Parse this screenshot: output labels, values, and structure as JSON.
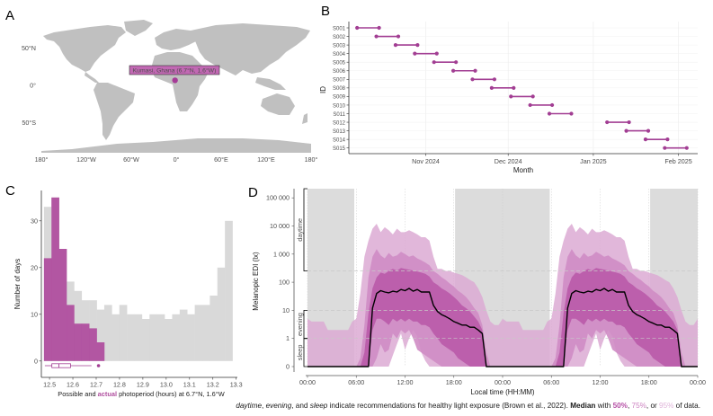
{
  "figure": {
    "panel_labels": [
      "A",
      "B",
      "C",
      "D"
    ],
    "caption": {
      "term_daytime": "daytime",
      "sep1": ", ",
      "term_evening": "evening",
      "sep2": ", and ",
      "term_sleep": "sleep",
      "text1": " indicate recommendations for healthy light exposure (Brown et al., 2022). ",
      "median": "Median",
      "with": " with ",
      "p50": "50%",
      "comma": ", ",
      "p75": "75%",
      "or": ", or ",
      "p95": "95%",
      "tail": " of data."
    },
    "colors": {
      "accent": "#a23e93",
      "band50": "#b95aa8",
      "band75": "#cf8cc4",
      "band95": "#dcaad4",
      "night": "#dcdcdc",
      "land": "#c0c0c0",
      "possible": "#d9d9d9",
      "actual": "#b04f9f"
    }
  },
  "chart_data": [
    {
      "panel": "A",
      "type": "map",
      "title": "",
      "location_label": "Kumasi, Ghana (6.7°N, 1.6°W)",
      "location": {
        "lat": 6.7,
        "lon": -1.6
      },
      "x_ticks": [
        "180°",
        "120°W",
        "60°W",
        "0°",
        "60°E",
        "120°E",
        "180°"
      ],
      "x_tick_values": [
        -180,
        -120,
        -60,
        0,
        60,
        120,
        180
      ],
      "y_ticks": [
        "50°N",
        "0°",
        "50°S"
      ],
      "y_tick_values": [
        50,
        0,
        -50
      ],
      "xlim": [
        -180,
        180
      ],
      "ylim": [
        -90,
        84
      ]
    },
    {
      "panel": "B",
      "type": "dumbbell",
      "xlabel": "Month",
      "ylabel": "ID",
      "x_ticks": [
        "Nov 2024",
        "Dec 2024",
        "Jan 2025",
        "Feb 2025"
      ],
      "x_tick_dates": [
        "2024-11-01",
        "2024-12-01",
        "2025-01-01",
        "2025-02-01"
      ],
      "xlim": [
        "2024-10-04",
        "2025-02-08"
      ],
      "grid": true,
      "rows": [
        {
          "id": "S001",
          "start": "2024-10-07",
          "end": "2024-10-15"
        },
        {
          "id": "S002",
          "start": "2024-10-14",
          "end": "2024-10-22"
        },
        {
          "id": "S003",
          "start": "2024-10-21",
          "end": "2024-10-29"
        },
        {
          "id": "S004",
          "start": "2024-10-28",
          "end": "2024-11-05"
        },
        {
          "id": "S005",
          "start": "2024-11-04",
          "end": "2024-11-12"
        },
        {
          "id": "S006",
          "start": "2024-11-11",
          "end": "2024-11-19"
        },
        {
          "id": "S007",
          "start": "2024-11-18",
          "end": "2024-11-26"
        },
        {
          "id": "S008",
          "start": "2024-11-25",
          "end": "2024-12-03"
        },
        {
          "id": "S009",
          "start": "2024-12-02",
          "end": "2024-12-10"
        },
        {
          "id": "S010",
          "start": "2024-12-09",
          "end": "2024-12-17"
        },
        {
          "id": "S011",
          "start": "2024-12-16",
          "end": "2024-12-24"
        },
        {
          "id": "S012",
          "start": "2025-01-06",
          "end": "2025-01-14"
        },
        {
          "id": "S013",
          "start": "2025-01-13",
          "end": "2025-01-21"
        },
        {
          "id": "S014",
          "start": "2025-01-20",
          "end": "2025-01-28"
        },
        {
          "id": "S015",
          "start": "2025-01-27",
          "end": "2025-02-04"
        }
      ]
    },
    {
      "panel": "C",
      "type": "bar",
      "xlabel_parts": [
        "Possible and ",
        "actual",
        " photoperiod (hours) at 6.7°N, 1.6°W"
      ],
      "ylabel": "Number of days",
      "x_ticks": [
        "12.5",
        "12.6",
        "12.7",
        "12.8",
        "12.9",
        "13.0",
        "13.1",
        "13.2",
        "13.3"
      ],
      "x_tick_values": [
        12.5,
        12.6,
        12.7,
        12.8,
        12.9,
        13.0,
        13.1,
        13.2,
        13.3
      ],
      "y_ticks": [
        "0",
        "10",
        "20",
        "30"
      ],
      "y_tick_values": [
        0,
        10,
        20,
        30
      ],
      "xlim": [
        12.465,
        13.305
      ],
      "ylim": [
        -3.5,
        36.5
      ],
      "bin_start": 12.476,
      "bin_width": 0.03232,
      "series": [
        {
          "name": "possible",
          "values": [
            33,
            35,
            24,
            17,
            15,
            13,
            13,
            11,
            12,
            10,
            12,
            10,
            10,
            9,
            10,
            10,
            9,
            10,
            11,
            10,
            12,
            12,
            14,
            20,
            30
          ]
        },
        {
          "name": "actual",
          "values": [
            22,
            35,
            24,
            12,
            8,
            8,
            7,
            4
          ]
        }
      ],
      "boxplot": {
        "min": 12.48,
        "q1": 12.51,
        "median": 12.54,
        "q3": 12.59,
        "whisker_max": 12.68,
        "outliers": [
          12.71
        ]
      }
    },
    {
      "panel": "D",
      "type": "area",
      "xlabel": "Local time (HH:MM)",
      "ylabel": "Melanopic EDI (lx)",
      "x_ticks": [
        "00:00",
        "06:00",
        "12:00",
        "18:00",
        "00:00",
        "06:00",
        "12:00",
        "18:00",
        "00:00"
      ],
      "x_tick_hours": [
        0,
        6,
        12,
        18,
        24,
        30,
        36,
        42,
        48
      ],
      "xlim_hours": [
        0,
        48
      ],
      "y_ticks": [
        "0",
        "1",
        "10",
        "100",
        "1 000",
        "10 000",
        "100 000"
      ],
      "y_tick_values": [
        0,
        1,
        10,
        100,
        1000,
        10000,
        100000
      ],
      "y_scale": "pseudo-log",
      "reference_lines_lx": [
        1,
        10,
        250
      ],
      "annotations": [
        {
          "label": "daytime",
          "from": 250,
          "to": 100000
        },
        {
          "label": "evening",
          "from": 1,
          "to": 10
        },
        {
          "label": "sleep",
          "from": 0,
          "to": 1
        }
      ],
      "night_periods_hours": [
        [
          0,
          5.75
        ],
        [
          18.15,
          29.8
        ],
        [
          42.15,
          48
        ]
      ],
      "profile_hours": [
        0,
        0.5,
        1,
        1.5,
        2,
        2.5,
        3,
        3.5,
        4,
        4.5,
        5,
        5.5,
        6,
        6.5,
        7,
        7.5,
        8,
        8.5,
        9,
        9.5,
        10,
        10.5,
        11,
        11.5,
        12,
        12.5,
        13,
        13.5,
        14,
        14.5,
        15,
        15.5,
        16,
        16.5,
        17,
        17.5,
        18,
        18.5,
        19,
        19.5,
        20,
        20.5,
        21,
        21.5,
        22,
        22.5,
        23,
        23.5,
        24
      ],
      "series": [
        {
          "name": "Median",
          "values": [
            0,
            0,
            0,
            0,
            0,
            0,
            0,
            0,
            0,
            0,
            0,
            0,
            0,
            0,
            0,
            0,
            12,
            40,
            50,
            45,
            42,
            48,
            45,
            55,
            50,
            60,
            48,
            55,
            45,
            45,
            45,
            15,
            9,
            7,
            6,
            5,
            4,
            3.5,
            3,
            3,
            2.5,
            2.5,
            2,
            1.5,
            0,
            0,
            0,
            0,
            0
          ]
        },
        {
          "name": "50% low",
          "values": [
            0,
            0,
            0,
            0,
            0,
            0,
            0,
            0,
            0,
            0,
            0,
            0,
            0,
            0,
            0,
            0,
            2,
            5,
            5,
            4,
            3,
            5,
            4,
            5,
            4,
            5,
            4,
            4,
            3,
            3,
            2.5,
            1.5,
            1,
            0.8,
            0.7,
            0.6,
            0.5,
            0.3,
            0.2,
            0.1,
            0,
            0,
            0,
            0,
            0,
            0,
            0,
            0,
            0
          ]
        },
        {
          "name": "50% high",
          "values": [
            0,
            0,
            0,
            0,
            0,
            0,
            0,
            0,
            0,
            0,
            0,
            0,
            0,
            0,
            0.5,
            8,
            60,
            150,
            220,
            200,
            250,
            300,
            260,
            320,
            300,
            280,
            260,
            240,
            220,
            200,
            160,
            100,
            80,
            60,
            50,
            40,
            30,
            22,
            15,
            12,
            9,
            6,
            4,
            2,
            0,
            0,
            0,
            0,
            0
          ]
        },
        {
          "name": "75% low",
          "values": [
            0,
            0,
            0,
            0,
            0,
            0,
            0,
            0,
            0,
            0,
            0,
            0,
            0,
            0,
            0,
            0,
            0,
            0.3,
            0.8,
            0.5,
            0.6,
            1.5,
            1,
            2,
            1.5,
            2,
            1,
            0.6,
            0.5,
            0.4,
            0.3,
            0.2,
            0.1,
            0,
            0,
            0,
            0,
            0,
            0,
            0,
            0,
            0,
            0,
            0,
            0,
            0,
            0,
            0,
            0
          ]
        },
        {
          "name": "75% high",
          "values": [
            0,
            0,
            0,
            0,
            0,
            0,
            0,
            0,
            0,
            0,
            0,
            0,
            0,
            0.3,
            3,
            150,
            800,
            1500,
            900,
            700,
            1100,
            800,
            900,
            1200,
            1000,
            800,
            900,
            700,
            600,
            500,
            400,
            250,
            200,
            150,
            120,
            90,
            70,
            50,
            40,
            30,
            20,
            12,
            8,
            3,
            0.5,
            0,
            0,
            0,
            0
          ]
        },
        {
          "name": "95% low",
          "values": [
            0,
            0,
            0,
            0,
            0,
            0,
            0,
            0,
            0,
            0,
            0,
            0,
            0,
            0,
            0,
            0,
            0,
            0,
            0,
            0,
            0,
            0.4,
            0.8,
            1.5,
            0.6,
            1,
            2,
            1.2,
            0.5,
            0.2,
            0,
            0,
            0,
            0,
            0,
            0,
            0,
            0,
            0,
            0,
            0,
            0,
            0,
            0,
            0,
            0,
            0,
            0,
            0
          ]
        },
        {
          "name": "95% high",
          "values": [
            5,
            4,
            4,
            4,
            4,
            2,
            2,
            2,
            2,
            2,
            2,
            4,
            5,
            40,
            800,
            3000,
            8000,
            12000,
            6000,
            9000,
            7000,
            5000,
            8000,
            6000,
            6000,
            7000,
            6000,
            5000,
            4000,
            4000,
            3000,
            800,
            300,
            300,
            250,
            250,
            220,
            200,
            180,
            150,
            120,
            100,
            60,
            30,
            10,
            4,
            3,
            3,
            5
          ]
        }
      ]
    }
  ]
}
